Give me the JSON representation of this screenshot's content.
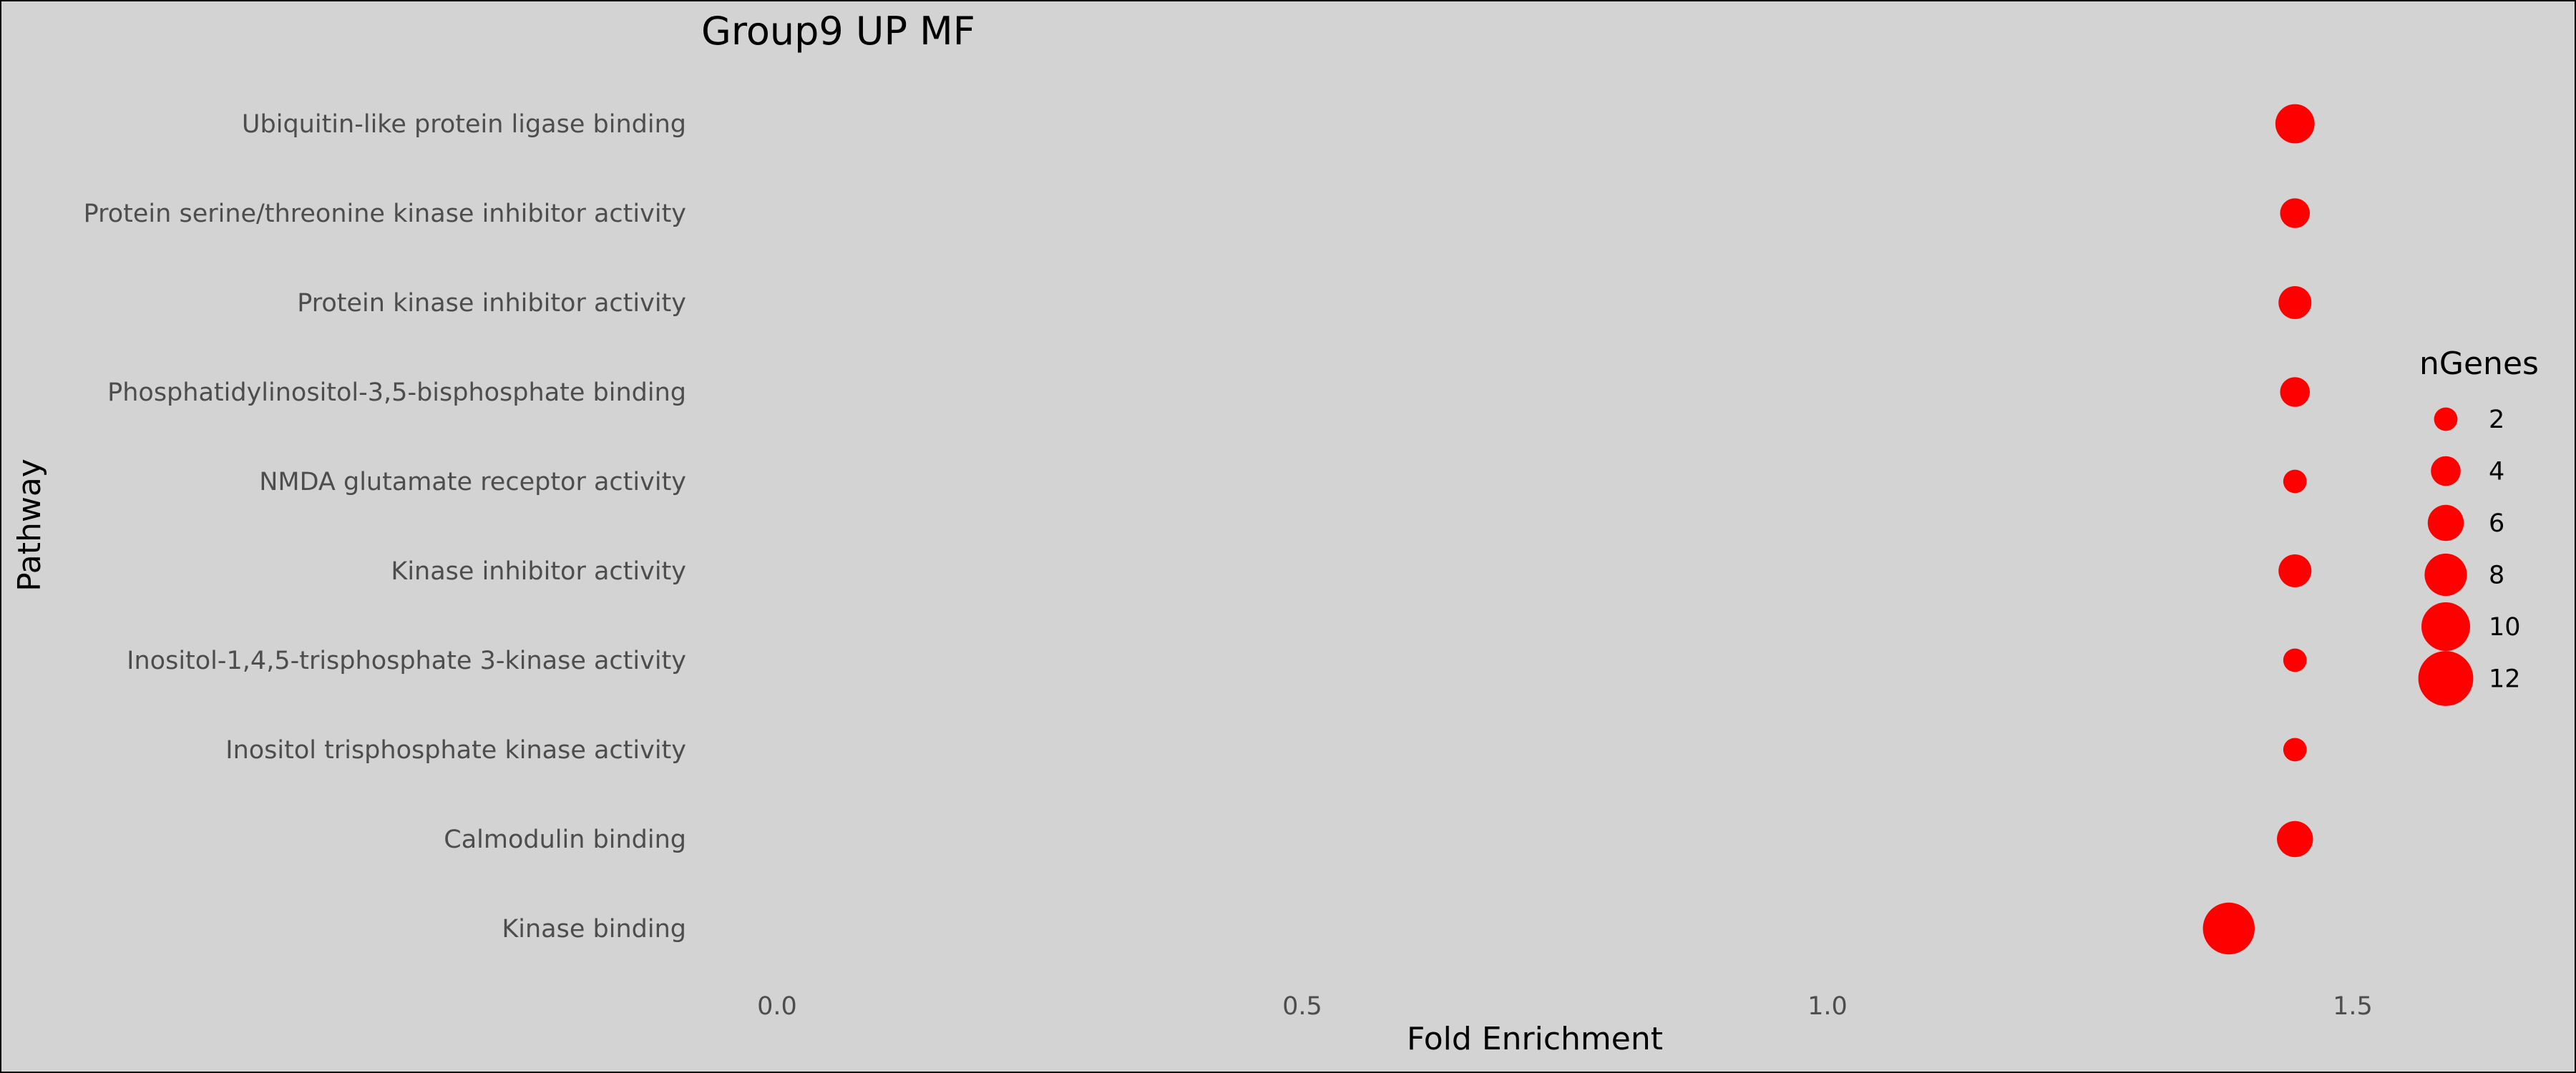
{
  "chart_data": {
    "type": "scatter",
    "title": "Group9 UP MF",
    "xlabel": "Fold Enrichment",
    "ylabel": "Pathway",
    "xlim": [
      -0.1,
      1.58
    ],
    "x_ticks": [
      0.0,
      0.5,
      1.0,
      1.5
    ],
    "x_tick_labels": [
      "0.0",
      "0.5",
      "1.0",
      "1.5"
    ],
    "grid": false,
    "point_color": "#ff0000",
    "categories": [
      "Ubiquitin-like protein ligase binding",
      "Protein serine/threonine kinase inhibitor activity",
      "Protein kinase inhibitor activity",
      "Phosphatidylinositol-3,5-bisphosphate binding",
      "NMDA glutamate receptor activity",
      "Kinase inhibitor activity",
      "Inositol-1,4,5-trisphosphate 3-kinase activity",
      "Inositol trisphosphate kinase activity",
      "Calmodulin binding",
      "Kinase binding"
    ],
    "points": [
      {
        "pathway": "Ubiquitin-like protein ligase binding",
        "fold_enrichment": 1.445,
        "nGenes": 7
      },
      {
        "pathway": "Protein serine/threonine kinase inhibitor activity",
        "fold_enrichment": 1.445,
        "nGenes": 4
      },
      {
        "pathway": "Protein kinase inhibitor activity",
        "fold_enrichment": 1.445,
        "nGenes": 5
      },
      {
        "pathway": "Phosphatidylinositol-3,5-bisphosphate binding",
        "fold_enrichment": 1.445,
        "nGenes": 4
      },
      {
        "pathway": "NMDA glutamate receptor activity",
        "fold_enrichment": 1.445,
        "nGenes": 2
      },
      {
        "pathway": "Kinase inhibitor activity",
        "fold_enrichment": 1.445,
        "nGenes": 5
      },
      {
        "pathway": "Inositol-1,4,5-trisphosphate 3-kinase activity",
        "fold_enrichment": 1.445,
        "nGenes": 2
      },
      {
        "pathway": "Inositol trisphosphate kinase activity",
        "fold_enrichment": 1.445,
        "nGenes": 2
      },
      {
        "pathway": "Calmodulin binding",
        "fold_enrichment": 1.445,
        "nGenes": 6
      },
      {
        "pathway": "Kinase binding",
        "fold_enrichment": 1.382,
        "nGenes": 11
      }
    ],
    "legend": {
      "title": "nGenes",
      "placement": "right",
      "entries": [
        {
          "label": "2",
          "value": 2
        },
        {
          "label": "4",
          "value": 4
        },
        {
          "label": "6",
          "value": 6
        },
        {
          "label": "8",
          "value": 8
        },
        {
          "label": "10",
          "value": 10
        },
        {
          "label": "12",
          "value": 12
        }
      ]
    }
  }
}
